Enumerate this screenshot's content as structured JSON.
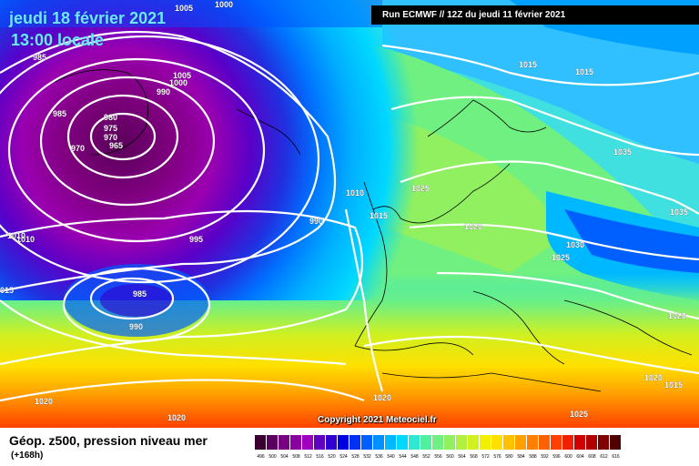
{
  "map": {
    "title_date": "jeudi 18 février 2021",
    "title_time": "13:00 locale",
    "run_info": "Run ECMWF // 12Z du jeudi 11 février 2021",
    "copyright": "Copyright 2021 Meteociel.fr",
    "isobar_labels": [
      "1005",
      "1000",
      "985",
      "985",
      "980",
      "975",
      "970",
      "965",
      "970",
      "1005",
      "990",
      "1000",
      "1010",
      "1015",
      "1015",
      "1035",
      "1010",
      "1025",
      "990",
      "1015",
      "1020",
      "1035",
      "995",
      "1030",
      "1025",
      "1010",
      "985",
      "1020",
      "990",
      "015",
      "1020",
      "1020",
      "1020",
      "1025",
      "1020",
      "1015"
    ]
  },
  "footer": {
    "title": "Géop. z500, pression niveau mer",
    "subtitle": "(+168h)"
  },
  "legend": {
    "ticks": [
      "496",
      "500",
      "504",
      "508",
      "512",
      "516",
      "520",
      "524",
      "528",
      "532",
      "536",
      "540",
      "544",
      "548",
      "552",
      "556",
      "560",
      "564",
      "568",
      "572",
      "576",
      "580",
      "584",
      "588",
      "592",
      "596",
      "600",
      "604",
      "608",
      "612",
      "616"
    ],
    "colors": [
      "#3a0030",
      "#5a0060",
      "#780080",
      "#8a00a0",
      "#a000c0",
      "#6000c0",
      "#3000d0",
      "#0000e0",
      "#0030f0",
      "#0060ff",
      "#0090ff",
      "#00b8ff",
      "#00d8ff",
      "#30e8d0",
      "#50f0a0",
      "#70f080",
      "#90f060",
      "#b0f040",
      "#d0f020",
      "#f0f000",
      "#ffe000",
      "#ffc000",
      "#ffa000",
      "#ff8000",
      "#ff6000",
      "#ff4000",
      "#f02000",
      "#d00000",
      "#b00000",
      "#800000",
      "#500000"
    ]
  }
}
